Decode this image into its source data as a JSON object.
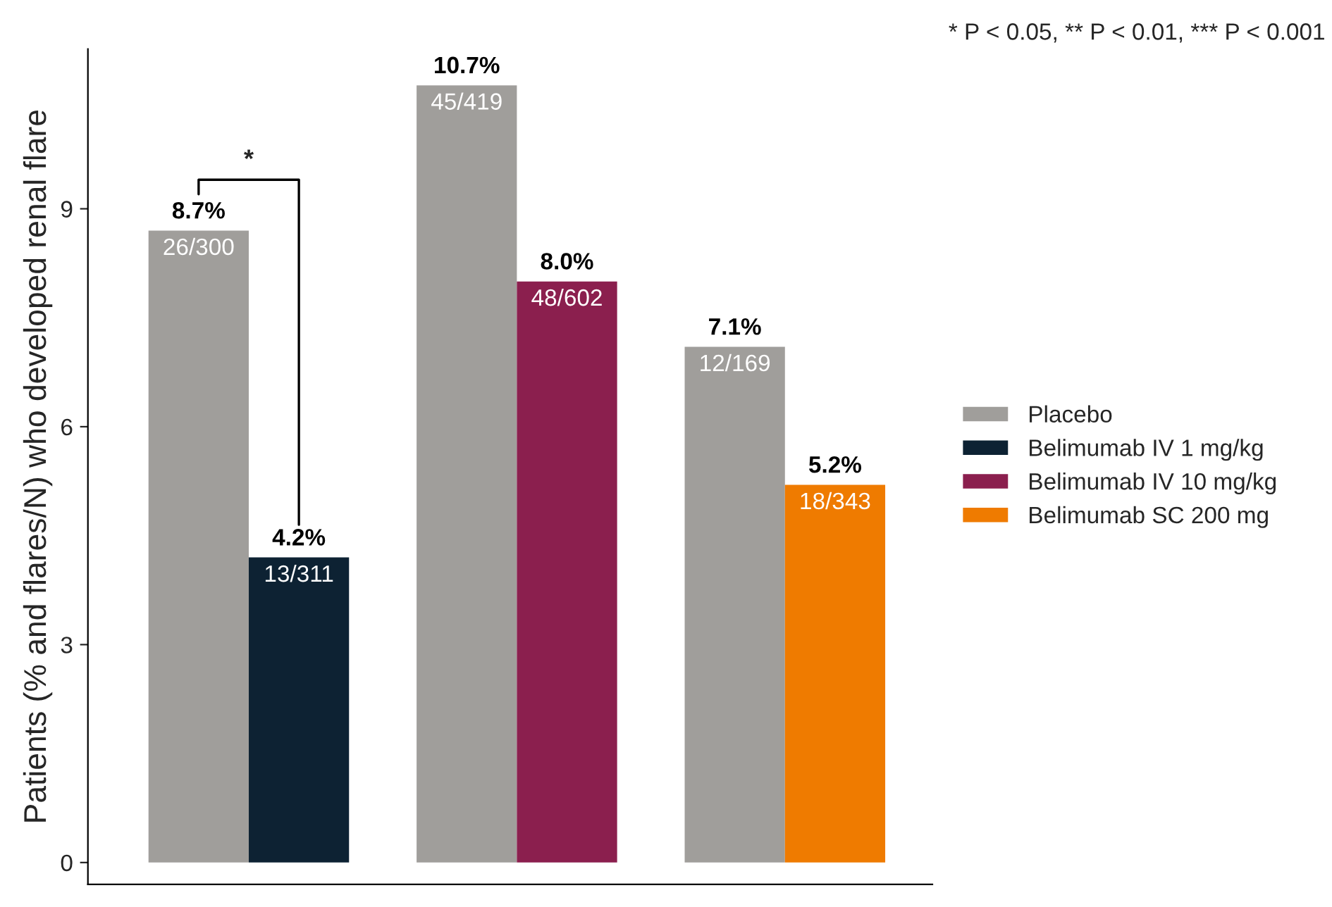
{
  "chart_data": {
    "type": "bar",
    "ylabel": "Patients (% and flares/N) who developed renal flare",
    "categories": [
      null,
      null,
      null
    ],
    "series": [
      {
        "name": "Placebo",
        "color": "#a09e9b",
        "values": [
          8.7,
          10.7,
          7.1
        ],
        "value_labels": [
          "8.7%",
          "10.7%",
          "7.1%"
        ]
      },
      {
        "name": "Belimumab IV 1 mg/kg",
        "color": "#0d2233",
        "values": [
          4.2,
          null,
          null
        ],
        "value_labels": [
          "4.2%",
          null,
          null
        ]
      },
      {
        "name": "Belimumab IV 10 mg/kg",
        "color": "#8b1f4e",
        "values": [
          null,
          8.0,
          null
        ],
        "value_labels": [
          null,
          "8.0%",
          null
        ]
      },
      {
        "name": "Belimumab SC 200 mg",
        "color": "#ef7b00",
        "values": [
          null,
          null,
          5.2
        ],
        "value_labels": [
          null,
          null,
          "5.2%"
        ]
      }
    ],
    "ylim": [
      -0.3,
      11.2
    ],
    "yticks": [
      0,
      3,
      6,
      9
    ],
    "grid": false,
    "legend": "right",
    "annotations": [
      "* P < 0.05, ** P < 0.01, *** P < 0.001",
      "*",
      "26/300",
      "45/419",
      "12/169",
      "13/311",
      "48/602",
      "18/343"
    ]
  }
}
